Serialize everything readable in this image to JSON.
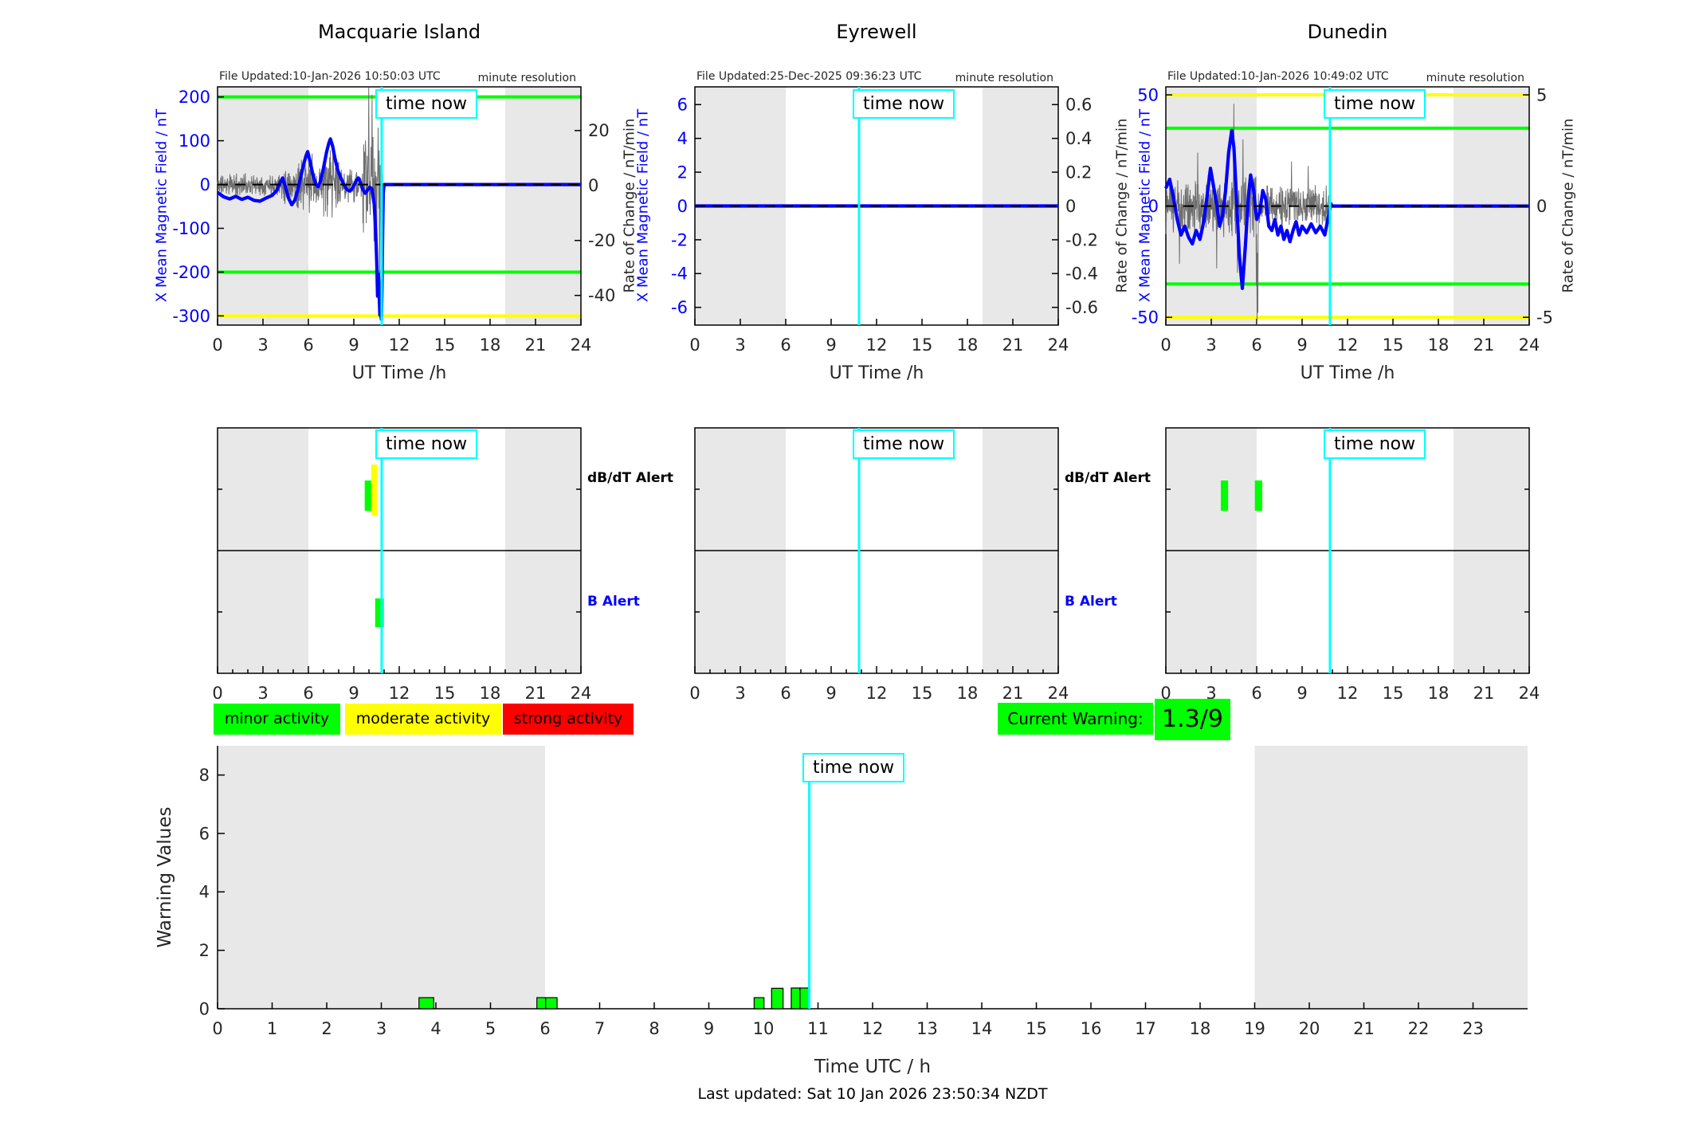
{
  "labels": {
    "time_now": "time now",
    "minute_resolution": "minute resolution",
    "ut_time": "UT Time /h",
    "utc_time": "Time UTC / h",
    "warning_values": "Warning Values",
    "rate_of_change": "Rate of Change / nT/min",
    "db_dt_alert": "dB/dT Alert",
    "b_alert": "B Alert"
  },
  "legend": [
    {
      "label": "minor activity",
      "color": "#00ff00"
    },
    {
      "label": "moderate activity",
      "color": "#ffff00"
    },
    {
      "label": "strong activity",
      "color": "#ff0000"
    }
  ],
  "current_warning": {
    "label": "Current Warning:",
    "value": "1.3/9",
    "color": "#00ff00"
  },
  "footer": "Last updated: Sat 10 Jan 2026 23:50:34 NZDT",
  "colors": {
    "band": "#e8e8e8",
    "blue": "#0000ff",
    "gray_line": "#6e6e6e",
    "green": "#00ff00",
    "yellow": "#ffff00",
    "red": "#ff0000",
    "cyan": "#00ffff",
    "axis_text": "#262626",
    "frame": "#000000"
  },
  "chart_data": {
    "type": "line",
    "stations": [
      {
        "id": "macquarie-island",
        "title": "Macquarie Island",
        "file_updated": "File Updated:10-Jan-2026 10:50:03 UTC",
        "ylabel_left": "X Mean Magnetic Field / nT",
        "xlim": [
          0,
          24
        ],
        "xticks": [
          0,
          3,
          6,
          9,
          12,
          15,
          18,
          21,
          24
        ],
        "ylim_left": [
          -321,
          223
        ],
        "yticks_left": [
          200,
          100,
          0,
          -100,
          -200,
          -300
        ],
        "ylim_right": [
          -50.8,
          35.9
        ],
        "yticks_right": [
          20,
          0,
          -20,
          -40
        ],
        "green_lines": [
          200,
          -200
        ],
        "yellow_lines": [
          -300
        ],
        "night_bands": [
          [
            0,
            6
          ],
          [
            19,
            24
          ]
        ],
        "time_now": 10.84,
        "data_end": 10.92,
        "blue_points": [
          [
            0,
            -18
          ],
          [
            0.4,
            -28
          ],
          [
            0.8,
            -33
          ],
          [
            1.2,
            -27
          ],
          [
            1.6,
            -34
          ],
          [
            2,
            -29
          ],
          [
            2.4,
            -36
          ],
          [
            2.8,
            -38
          ],
          [
            3.2,
            -31
          ],
          [
            3.6,
            -25
          ],
          [
            3.9,
            -14
          ],
          [
            4.15,
            6
          ],
          [
            4.3,
            15
          ],
          [
            4.5,
            -8
          ],
          [
            4.7,
            -32
          ],
          [
            4.9,
            -46
          ],
          [
            5.1,
            -36
          ],
          [
            5.3,
            -12
          ],
          [
            5.5,
            18
          ],
          [
            5.7,
            48
          ],
          [
            5.85,
            66
          ],
          [
            5.95,
            75
          ],
          [
            6.1,
            54
          ],
          [
            6.3,
            22
          ],
          [
            6.5,
            0
          ],
          [
            6.65,
            -5
          ],
          [
            6.8,
            8
          ],
          [
            7,
            38
          ],
          [
            7.2,
            74
          ],
          [
            7.35,
            94
          ],
          [
            7.45,
            104
          ],
          [
            7.6,
            88
          ],
          [
            7.75,
            60
          ],
          [
            7.95,
            32
          ],
          [
            8.15,
            14
          ],
          [
            8.35,
            0
          ],
          [
            8.55,
            -12
          ],
          [
            8.75,
            -15
          ],
          [
            8.95,
            -6
          ],
          [
            9.15,
            8
          ],
          [
            9.3,
            15
          ],
          [
            9.45,
            4
          ],
          [
            9.6,
            -12
          ],
          [
            9.75,
            -20
          ],
          [
            9.9,
            -13
          ],
          [
            10.05,
            -6
          ],
          [
            10.2,
            -10
          ],
          [
            10.35,
            -45
          ],
          [
            10.45,
            -110
          ],
          [
            10.52,
            -185
          ],
          [
            10.57,
            -255
          ],
          [
            10.62,
            -205
          ],
          [
            10.67,
            -245
          ],
          [
            10.72,
            -298
          ],
          [
            10.77,
            -255
          ],
          [
            10.82,
            -308
          ],
          [
            10.86,
            -240
          ],
          [
            10.9,
            -120
          ],
          [
            10.94,
            -20
          ],
          [
            11,
            0
          ],
          [
            24,
            0
          ]
        ],
        "gray_noise": {
          "seed": 11,
          "step": 0.0167,
          "segments": [
            [
              0,
              4.2,
              28
            ],
            [
              4.2,
              5.2,
              48
            ],
            [
              5.2,
              6.3,
              75
            ],
            [
              6.3,
              7,
              50
            ],
            [
              7,
              8.1,
              95
            ],
            [
              8.1,
              9.6,
              42
            ],
            [
              9.6,
              10.92,
              120
            ]
          ],
          "spikes": [
            [
              9.98,
              222
            ],
            [
              10.08,
              -70
            ],
            [
              10.2,
              205
            ],
            [
              10.33,
              -130
            ],
            [
              10.5,
              -245
            ],
            [
              10.6,
              130
            ],
            [
              10.7,
              -305
            ],
            [
              10.8,
              -300
            ],
            [
              10.87,
              -160
            ]
          ]
        },
        "alerts_dbdt": [
          {
            "t0": 9.72,
            "t1": 10.15,
            "color": "#00ff00",
            "tall": false
          },
          {
            "t0": 10.15,
            "t1": 10.55,
            "color": "#ffff00",
            "tall": true
          }
        ],
        "alerts_b": [
          {
            "t0": 10.41,
            "t1": 10.98,
            "color": "#00ff00"
          }
        ],
        "show_alert_labels": true
      },
      {
        "id": "eyrewell",
        "title": "Eyrewell",
        "file_updated": "File Updated:25-Dec-2025 09:36:23 UTC",
        "ylabel_left": "X Mean Magnetic Field / nT",
        "xlim": [
          0,
          24
        ],
        "xticks": [
          0,
          3,
          6,
          9,
          12,
          15,
          18,
          21,
          24
        ],
        "ylim_left": [
          -7.05,
          7.05
        ],
        "yticks_left": [
          6,
          4,
          2,
          0,
          -2,
          -4,
          -6
        ],
        "ylim_right": [
          -0.705,
          0.705
        ],
        "yticks_right": [
          0.6,
          0.4,
          0.2,
          0,
          -0.2,
          -0.4,
          -0.6
        ],
        "green_lines": [],
        "yellow_lines": [],
        "night_bands": [
          [
            0,
            6
          ],
          [
            19,
            24
          ]
        ],
        "time_now": 10.84,
        "data_end": 24,
        "blue_points": [
          [
            0,
            0
          ],
          [
            24,
            0
          ]
        ],
        "gray_noise": null,
        "alerts_dbdt": [],
        "alerts_b": [],
        "show_alert_labels": true
      },
      {
        "id": "dunedin",
        "title": "Dunedin",
        "file_updated": "File Updated:10-Jan-2026 10:49:02 UTC",
        "ylabel_left": "X Mean Magnetic Field / nT",
        "xlim": [
          0,
          24
        ],
        "xticks": [
          0,
          3,
          6,
          9,
          12,
          15,
          18,
          21,
          24
        ],
        "ylim_left": [
          -53.5,
          53.6
        ],
        "yticks_left": [
          50,
          0,
          -50
        ],
        "ylim_right": [
          -5.35,
          5.36
        ],
        "yticks_right": [
          5,
          0,
          -5
        ],
        "green_lines": [
          35,
          -35
        ],
        "yellow_lines": [
          50,
          -50
        ],
        "night_bands": [
          [
            0,
            6
          ],
          [
            19,
            24
          ]
        ],
        "time_now": 10.84,
        "data_end": 10.92,
        "blue_points": [
          [
            0,
            8
          ],
          [
            0.25,
            12
          ],
          [
            0.5,
            4
          ],
          [
            0.75,
            -6
          ],
          [
            1,
            -13
          ],
          [
            1.25,
            -9
          ],
          [
            1.5,
            -14
          ],
          [
            1.75,
            -17
          ],
          [
            2,
            -11
          ],
          [
            2.25,
            -15
          ],
          [
            2.5,
            -7
          ],
          [
            2.75,
            6
          ],
          [
            2.95,
            17
          ],
          [
            3.15,
            9
          ],
          [
            3.35,
            1
          ],
          [
            3.55,
            -9
          ],
          [
            3.75,
            -4
          ],
          [
            3.95,
            7
          ],
          [
            4.15,
            24
          ],
          [
            4.35,
            34
          ],
          [
            4.5,
            26
          ],
          [
            4.65,
            6
          ],
          [
            4.85,
            -22
          ],
          [
            5.05,
            -37
          ],
          [
            5.25,
            -18
          ],
          [
            5.45,
            4
          ],
          [
            5.6,
            14
          ],
          [
            5.8,
            7
          ],
          [
            6,
            -6
          ],
          [
            6.2,
            -3
          ],
          [
            6.4,
            7
          ],
          [
            6.6,
            3
          ],
          [
            6.8,
            -9
          ],
          [
            7,
            -11
          ],
          [
            7.2,
            -6
          ],
          [
            7.4,
            -13
          ],
          [
            7.6,
            -9
          ],
          [
            7.8,
            -15
          ],
          [
            8,
            -11
          ],
          [
            8.2,
            -16
          ],
          [
            8.4,
            -11
          ],
          [
            8.6,
            -7
          ],
          [
            8.8,
            -13
          ],
          [
            9,
            -9
          ],
          [
            9.3,
            -12
          ],
          [
            9.6,
            -8
          ],
          [
            9.9,
            -12
          ],
          [
            10.2,
            -9
          ],
          [
            10.5,
            -13
          ],
          [
            10.7,
            -6
          ],
          [
            10.9,
            1
          ],
          [
            11,
            0
          ],
          [
            24,
            0
          ]
        ],
        "gray_noise": {
          "seed": 23,
          "step": 0.0167,
          "segments": [
            [
              0,
              6.1,
              15
            ],
            [
              6.1,
              10.92,
              10
            ]
          ],
          "spikes": [
            [
              0.9,
              -26
            ],
            [
              2.1,
              24
            ],
            [
              3.35,
              -28
            ],
            [
              4.5,
              46
            ],
            [
              4.72,
              -30
            ],
            [
              5.1,
              30
            ],
            [
              5.98,
              -36
            ],
            [
              6.03,
              -60
            ],
            [
              6.08,
              -48
            ],
            [
              8.3,
              20
            ],
            [
              9.4,
              18
            ]
          ]
        },
        "alerts_dbdt": [
          {
            "t0": 3.63,
            "t1": 4.11,
            "color": "#00ff00",
            "tall": false
          },
          {
            "t0": 5.88,
            "t1": 6.37,
            "color": "#00ff00",
            "tall": false
          }
        ],
        "alerts_b": [],
        "show_alert_labels": false
      }
    ],
    "warning_chart": {
      "type": "bar",
      "ylabel": "Warning Values",
      "xlabel": "Time UTC / h",
      "ylim": [
        0,
        9
      ],
      "yticks": [
        0,
        2,
        4,
        6,
        8
      ],
      "xlim": [
        0,
        24
      ],
      "xtick_labels_to": 23,
      "night_bands": [
        [
          0,
          6
        ],
        [
          19,
          24
        ]
      ],
      "time_now": 10.84,
      "bar_color": "#00ff00",
      "bars": [
        {
          "t0": 3.69,
          "t1": 3.96,
          "h": 0.38
        },
        {
          "t0": 5.85,
          "t1": 6.01,
          "h": 0.38
        },
        {
          "t0": 6.01,
          "t1": 6.22,
          "h": 0.38
        },
        {
          "t0": 9.83,
          "t1": 10.01,
          "h": 0.38
        },
        {
          "t0": 10.15,
          "t1": 10.36,
          "h": 0.7
        },
        {
          "t0": 10.51,
          "t1": 10.67,
          "h": 0.71
        },
        {
          "t0": 10.67,
          "t1": 10.83,
          "h": 0.71
        }
      ]
    }
  }
}
